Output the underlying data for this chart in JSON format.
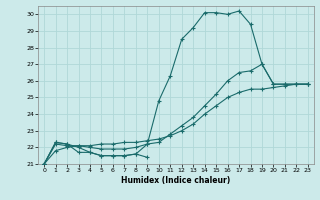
{
  "xlabel": "Humidex (Indice chaleur)",
  "bg_color": "#cceaea",
  "grid_color": "#b0d8d8",
  "line_color": "#1a6b6b",
  "xlim": [
    -0.5,
    23.5
  ],
  "ylim": [
    21,
    30.5
  ],
  "yticks": [
    21,
    22,
    23,
    24,
    25,
    26,
    27,
    28,
    29,
    30
  ],
  "xticks": [
    0,
    1,
    2,
    3,
    4,
    5,
    6,
    7,
    8,
    9,
    10,
    11,
    12,
    13,
    14,
    15,
    16,
    17,
    18,
    19,
    20,
    21,
    22,
    23
  ],
  "series": [
    {
      "x": [
        0,
        1,
        2,
        3,
        4,
        5,
        6,
        7,
        8,
        9,
        10,
        11,
        12,
        13,
        14,
        15,
        16,
        17,
        18,
        19,
        20,
        21,
        22,
        23
      ],
      "y": [
        21.0,
        22.3,
        22.2,
        22.0,
        21.7,
        21.5,
        21.5,
        21.5,
        21.6,
        22.2,
        24.8,
        26.3,
        28.5,
        29.2,
        30.1,
        30.1,
        30.0,
        30.2,
        29.4,
        27.0,
        25.8,
        25.8,
        25.8,
        25.8
      ]
    },
    {
      "x": [
        0,
        1,
        2,
        3,
        4,
        5,
        6,
        7,
        8,
        9,
        10,
        11,
        12,
        13,
        14,
        15,
        16,
        17,
        18,
        19,
        20,
        21,
        22,
        23
      ],
      "y": [
        21.0,
        22.2,
        22.1,
        22.1,
        22.0,
        21.9,
        21.9,
        21.9,
        22.0,
        22.2,
        22.3,
        22.8,
        23.3,
        23.8,
        24.5,
        25.2,
        26.0,
        26.5,
        26.6,
        27.0,
        25.8,
        25.8,
        25.8,
        25.8
      ]
    },
    {
      "x": [
        0,
        1,
        2,
        3,
        4,
        5,
        6,
        7,
        8,
        9,
        10,
        11,
        12,
        13,
        14,
        15,
        16,
        17,
        18,
        19,
        20,
        21,
        22,
        23
      ],
      "y": [
        21.0,
        21.8,
        22.0,
        22.1,
        22.1,
        22.2,
        22.2,
        22.3,
        22.3,
        22.4,
        22.5,
        22.7,
        23.0,
        23.4,
        24.0,
        24.5,
        25.0,
        25.3,
        25.5,
        25.5,
        25.6,
        25.7,
        25.8,
        25.8
      ]
    },
    {
      "x": [
        0,
        1,
        2,
        3,
        4,
        5,
        6,
        7,
        8,
        9
      ],
      "y": [
        21.0,
        22.3,
        22.2,
        21.7,
        21.7,
        21.5,
        21.5,
        21.5,
        21.6,
        21.4
      ]
    }
  ]
}
